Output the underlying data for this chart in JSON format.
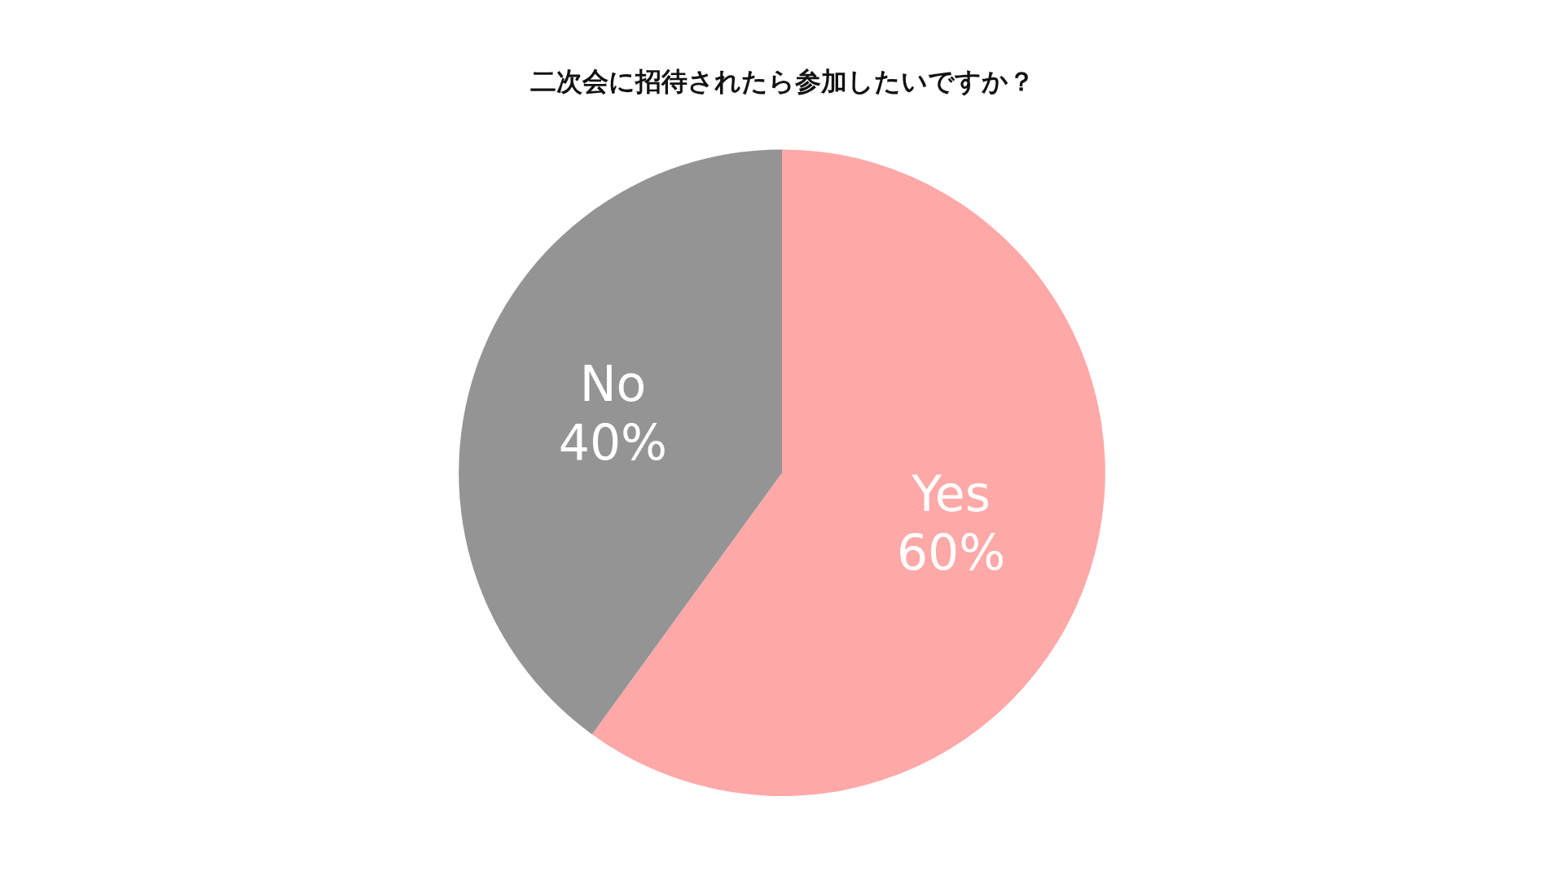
{
  "chart_data": {
    "type": "pie",
    "title": "二次会に招待されたら参加したいですか？",
    "categories": [
      "Yes",
      "No"
    ],
    "values": [
      60,
      40
    ],
    "value_labels": [
      "60%",
      "40%"
    ],
    "colors": [
      "#ffa8a8",
      "#949494"
    ],
    "legend": false
  }
}
